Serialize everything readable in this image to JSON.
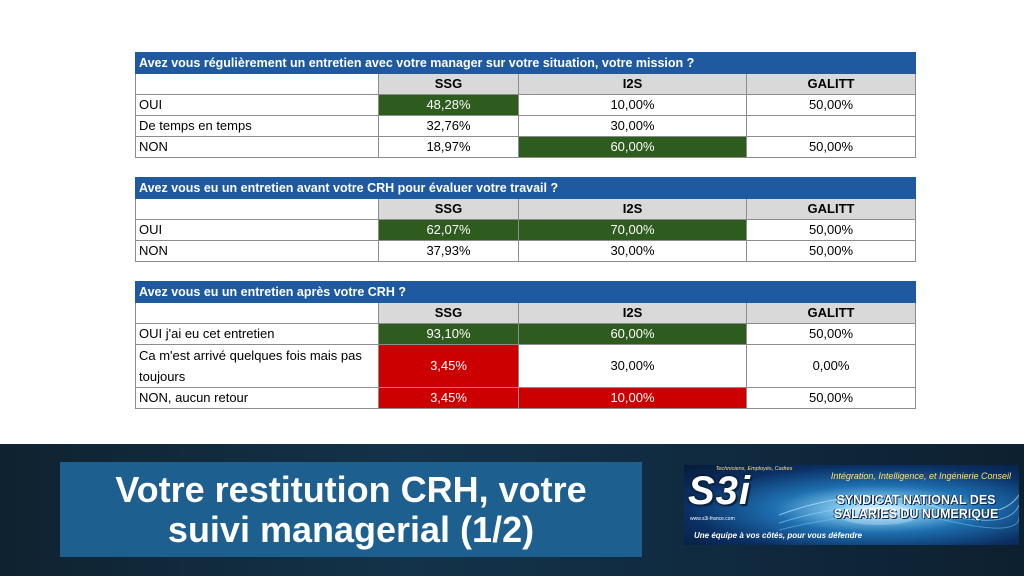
{
  "tables": [
    {
      "question": "Avez vous régulièrement un entretien avec votre manager sur votre situation, votre mission ?",
      "columns": [
        "SSG",
        "I2S",
        "GALITT"
      ],
      "rows": [
        {
          "label": "OUI",
          "values": [
            "48,28%",
            "10,00%",
            "50,00%"
          ]
        },
        {
          "label": "De temps en temps",
          "values": [
            "32,76%",
            "30,00%",
            ""
          ]
        },
        {
          "label": "NON",
          "values": [
            "18,97%",
            "60,00%",
            "50,00%"
          ]
        }
      ]
    },
    {
      "question": "Avez vous eu un entretien avant votre CRH pour évaluer votre travail ?",
      "columns": [
        "SSG",
        "I2S",
        "GALITT"
      ],
      "rows": [
        {
          "label": "OUI",
          "values": [
            "62,07%",
            "70,00%",
            "50,00%"
          ]
        },
        {
          "label": "NON",
          "values": [
            "37,93%",
            "30,00%",
            "50,00%"
          ]
        }
      ]
    },
    {
      "question": "Avez vous eu un entretien après votre CRH ?",
      "columns": [
        "SSG",
        "I2S",
        "GALITT"
      ],
      "rows": [
        {
          "label": "OUI j'ai eu cet entretien",
          "values": [
            "93,10%",
            "60,00%",
            "50,00%"
          ]
        },
        {
          "label": "Ca m'est arrivé quelques fois mais pas toujours",
          "values": [
            "3,45%",
            "30,00%",
            "0,00%"
          ]
        },
        {
          "label": "NON, aucun retour",
          "values": [
            "3,45%",
            "10,00%",
            "50,00%"
          ]
        }
      ]
    }
  ],
  "title": {
    "line1": "Votre restitution CRH, votre",
    "line2": "suivi managerial (1/2)"
  },
  "logo": {
    "brand": "S3i",
    "tagline_top": "Techniciens, Employés, Cadres",
    "url": "www.s3i-france.com",
    "services": "Intégration, Intelligence, et Ingénierie Conseil",
    "union_line1": "SYNDICAT NATIONAL DES",
    "union_line2": "SALARIES DU NUMERIQUE",
    "slogan": "Une équipe à vos côtés, pour vous défendre"
  },
  "colors": {
    "question_bar": "#1f5aa0",
    "header_bg": "#d9d9d9",
    "highlight_green": "#2e5b1e",
    "highlight_red": "#cc0000",
    "title_box": "#1d5f8e"
  }
}
